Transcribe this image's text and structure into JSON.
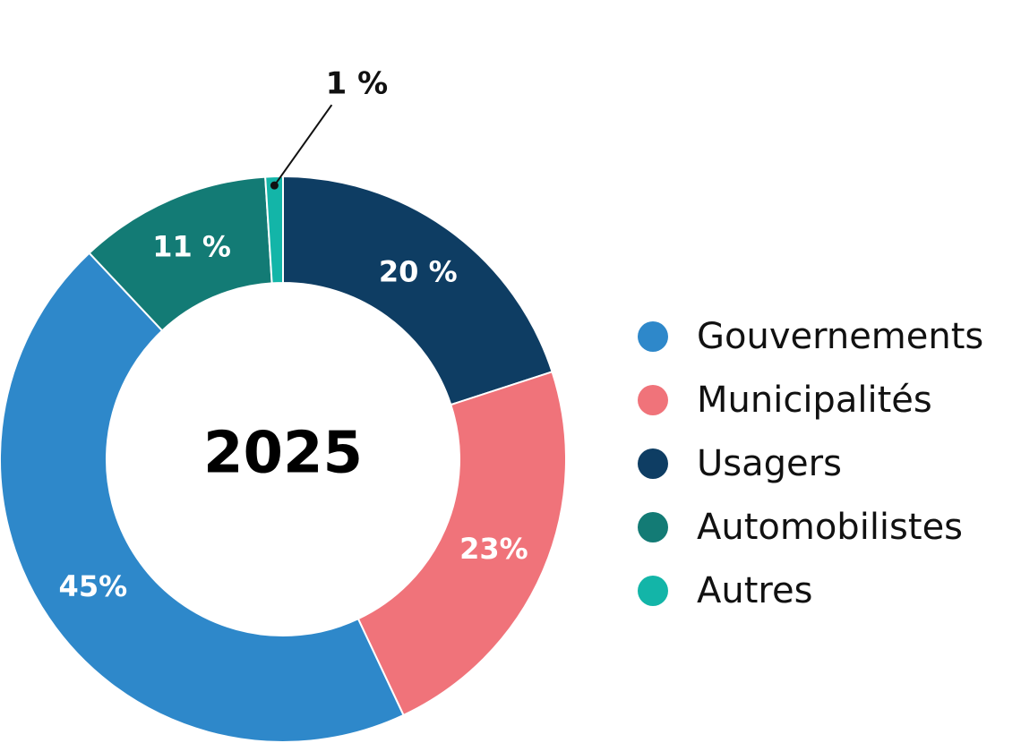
{
  "chart_data": {
    "type": "pie",
    "variant": "donut",
    "center_label": "2025",
    "slices": [
      {
        "name": "Usagers",
        "value": 20,
        "label": "20 %",
        "color": "#0e3d63"
      },
      {
        "name": "Municipalités",
        "value": 23,
        "label": "23%",
        "color": "#f0737a"
      },
      {
        "name": "Gouvernements",
        "value": 45,
        "label": "45%",
        "color": "#2e88ca"
      },
      {
        "name": "Automobilistes",
        "value": 11,
        "label": "11 %",
        "color": "#137b75"
      },
      {
        "name": "Autres",
        "value": 1,
        "label": "1 %",
        "color": "#13b5a8"
      }
    ],
    "legend": {
      "placement": "right",
      "entries": [
        {
          "label": "Gouvernements",
          "color": "#2e88ca"
        },
        {
          "label": "Municipalités",
          "color": "#f0737a"
        },
        {
          "label": "Usagers",
          "color": "#0e3d63"
        },
        {
          "label": "Automobilistes",
          "color": "#137b75"
        },
        {
          "label": "Autres",
          "color": "#13b5a8"
        }
      ]
    }
  }
}
